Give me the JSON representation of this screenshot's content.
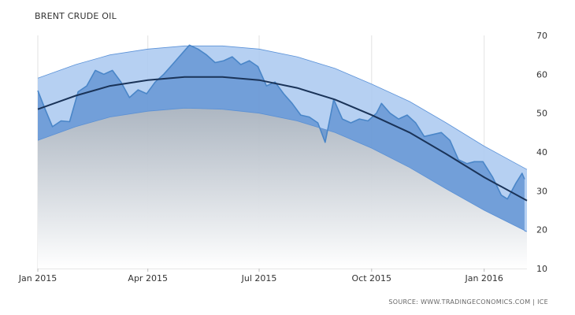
{
  "chart_data": {
    "type": "area",
    "title": "BRENT CRUDE OIL",
    "source": "SOURCE: WWW.TRADINGECONOMICS.COM | ICE",
    "x_ticks": [
      "Jan 2015",
      "Apr 2015",
      "Jul 2015",
      "Oct 2015",
      "Jan 2016"
    ],
    "x_tick_dates": [
      "2015-01-01",
      "2015-04-01",
      "2015-07-01",
      "2015-10-01",
      "2016-01-01"
    ],
    "x_range": [
      "2015-01-01",
      "2016-02-05"
    ],
    "y_ticks": [
      10,
      20,
      30,
      40,
      50,
      60,
      70
    ],
    "ylim": [
      10,
      70
    ],
    "grid": "vertical",
    "colors": {
      "price_fill": "#5b8fd0",
      "price_line": "#4a86c8",
      "trend_line": "#1a3358",
      "band_fill": "#a9c8f0",
      "band_edge": "#5b92d8",
      "under_fill": "#b7bfc9"
    },
    "series": [
      {
        "kind": "price",
        "points": [
          [
            "2015-01-01",
            55.8
          ],
          [
            "2015-01-07",
            51.0
          ],
          [
            "2015-01-13",
            46.5
          ],
          [
            "2015-01-20",
            48.0
          ],
          [
            "2015-01-27",
            47.8
          ],
          [
            "2015-02-03",
            55.5
          ],
          [
            "2015-02-10",
            57.0
          ],
          [
            "2015-02-17",
            61.0
          ],
          [
            "2015-02-24",
            60.0
          ],
          [
            "2015-03-03",
            61.0
          ],
          [
            "2015-03-10",
            58.0
          ],
          [
            "2015-03-17",
            54.0
          ],
          [
            "2015-03-24",
            56.0
          ],
          [
            "2015-03-31",
            55.0
          ],
          [
            "2015-04-07",
            58.0
          ],
          [
            "2015-04-14",
            60.0
          ],
          [
            "2015-04-21",
            62.5
          ],
          [
            "2015-04-28",
            65.0
          ],
          [
            "2015-05-05",
            67.5
          ],
          [
            "2015-05-12",
            66.5
          ],
          [
            "2015-05-19",
            65.0
          ],
          [
            "2015-05-26",
            63.0
          ],
          [
            "2015-06-02",
            63.5
          ],
          [
            "2015-06-09",
            64.5
          ],
          [
            "2015-06-16",
            62.5
          ],
          [
            "2015-06-23",
            63.5
          ],
          [
            "2015-06-30",
            62.0
          ],
          [
            "2015-07-07",
            57.0
          ],
          [
            "2015-07-14",
            58.0
          ],
          [
            "2015-07-21",
            55.0
          ],
          [
            "2015-07-28",
            52.5
          ],
          [
            "2015-08-04",
            49.5
          ],
          [
            "2015-08-11",
            49.0
          ],
          [
            "2015-08-18",
            47.5
          ],
          [
            "2015-08-24",
            42.5
          ],
          [
            "2015-08-31",
            53.5
          ],
          [
            "2015-09-07",
            48.5
          ],
          [
            "2015-09-14",
            47.5
          ],
          [
            "2015-09-21",
            48.5
          ],
          [
            "2015-09-28",
            48.0
          ],
          [
            "2015-10-05",
            50.0
          ],
          [
            "2015-10-09",
            52.5
          ],
          [
            "2015-10-16",
            50.0
          ],
          [
            "2015-10-23",
            48.5
          ],
          [
            "2015-10-30",
            49.5
          ],
          [
            "2015-11-06",
            47.5
          ],
          [
            "2015-11-13",
            44.0
          ],
          [
            "2015-11-20",
            44.5
          ],
          [
            "2015-11-27",
            45.0
          ],
          [
            "2015-12-04",
            43.0
          ],
          [
            "2015-12-11",
            38.0
          ],
          [
            "2015-12-18",
            37.0
          ],
          [
            "2015-12-24",
            37.5
          ],
          [
            "2015-12-31",
            37.5
          ],
          [
            "2016-01-08",
            33.5
          ],
          [
            "2016-01-15",
            28.9
          ],
          [
            "2016-01-20",
            27.9
          ],
          [
            "2016-01-27",
            32.0
          ],
          [
            "2016-02-01",
            34.5
          ],
          [
            "2016-02-03",
            33.0
          ]
        ]
      },
      {
        "kind": "trend",
        "points": [
          [
            "2015-01-01",
            51
          ],
          [
            "2015-02-01",
            54.5
          ],
          [
            "2015-03-01",
            57
          ],
          [
            "2015-04-01",
            58.5
          ],
          [
            "2015-05-01",
            59.3
          ],
          [
            "2015-06-01",
            59.3
          ],
          [
            "2015-07-01",
            58.5
          ],
          [
            "2015-08-01",
            56.5
          ],
          [
            "2015-09-01",
            53.5
          ],
          [
            "2015-10-01",
            49.5
          ],
          [
            "2015-11-01",
            45.0
          ],
          [
            "2015-12-01",
            39.5
          ],
          [
            "2016-01-01",
            33.5
          ],
          [
            "2016-02-05",
            27.5
          ]
        ]
      },
      {
        "kind": "band_upper",
        "points": [
          [
            "2015-01-01",
            59
          ],
          [
            "2015-02-01",
            62.5
          ],
          [
            "2015-03-01",
            65
          ],
          [
            "2015-04-01",
            66.5
          ],
          [
            "2015-05-01",
            67.3
          ],
          [
            "2015-06-01",
            67.3
          ],
          [
            "2015-07-01",
            66.5
          ],
          [
            "2015-08-01",
            64.5
          ],
          [
            "2015-09-01",
            61.5
          ],
          [
            "2015-10-01",
            57.5
          ],
          [
            "2015-11-01",
            53.0
          ],
          [
            "2015-12-01",
            47.5
          ],
          [
            "2016-01-01",
            41.5
          ],
          [
            "2016-02-05",
            35.5
          ]
        ]
      },
      {
        "kind": "band_lower",
        "points": [
          [
            "2015-01-01",
            43
          ],
          [
            "2015-02-01",
            46.5
          ],
          [
            "2015-03-01",
            49
          ],
          [
            "2015-04-01",
            50.5
          ],
          [
            "2015-05-01",
            51.3
          ],
          [
            "2015-06-01",
            51.0
          ],
          [
            "2015-07-01",
            50.0
          ],
          [
            "2015-08-01",
            48.0
          ],
          [
            "2015-09-01",
            45.0
          ],
          [
            "2015-10-01",
            41.0
          ],
          [
            "2015-11-01",
            36.0
          ],
          [
            "2015-12-01",
            30.5
          ],
          [
            "2016-01-01",
            25.0
          ],
          [
            "2016-02-05",
            19.5
          ]
        ]
      }
    ]
  }
}
